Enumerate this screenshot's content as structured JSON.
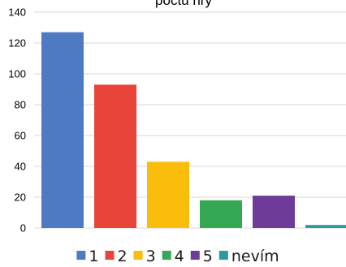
{
  "chart_data": {
    "type": "bar",
    "title": "počtu hry",
    "categories": [
      "1",
      "2",
      "3",
      "4",
      "5",
      "nevím"
    ],
    "values": [
      127,
      93,
      43,
      18,
      21,
      2
    ],
    "colors": [
      "#4e7ac4",
      "#e9443a",
      "#fbbd0b",
      "#34a853",
      "#6e3b98",
      "#2f9a9e"
    ],
    "ylim": [
      0,
      140
    ],
    "yticks": [
      0,
      20,
      40,
      60,
      80,
      100,
      120,
      140
    ],
    "grid": true,
    "legend_position": "bottom",
    "xlabel": "",
    "ylabel": ""
  }
}
